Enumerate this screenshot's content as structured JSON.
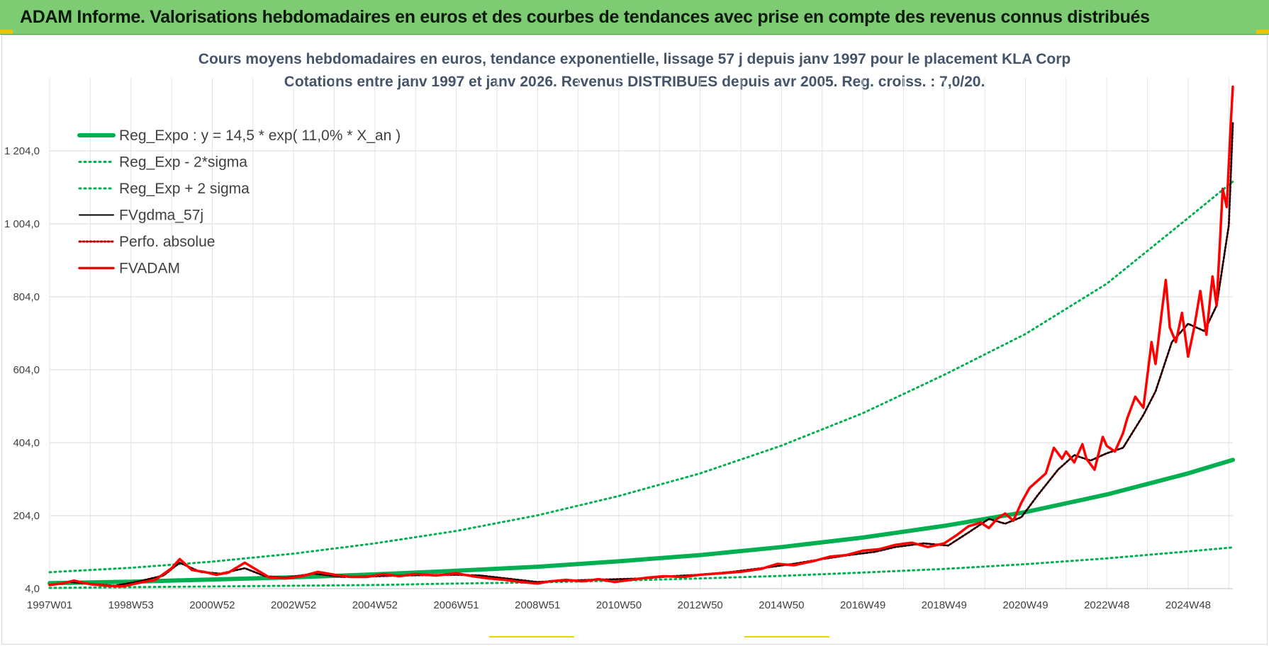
{
  "banner": {
    "title": "ADAM Informe. Valorisations hebdomadaires en euros et des courbes de tendances avec prise en compte des revenus connus distribués"
  },
  "colors": {
    "banner": "#7dcb72",
    "reg_expo": "#00b050",
    "band": "#00b050",
    "fvgdma": "#000000",
    "perfo": "#c00000",
    "fvadam": "#ff0000"
  },
  "chart_data": {
    "type": "line",
    "title": "Cours moyens hebdomadaires en euros, tendance exponentielle, lissage 57 j depuis janv 1997  pour le  placement KLA Corp",
    "subtitle": "Cotations entre janv 1997 et janv 2026. Revenus DISTRIBUES depuis avr 2005. Reg. croiss. : 7,0/20.",
    "xlabel": "",
    "ylabel": "",
    "x_range": [
      1997.0,
      2026.1
    ],
    "ylim": [
      4.0,
      1404.0
    ],
    "y_ticks": [
      "4,0",
      "204,0",
      "404,0",
      "604,0",
      "804,0",
      "1 004,0",
      "1 204,0"
    ],
    "y_tick_values": [
      4.0,
      204.0,
      404.0,
      604.0,
      804.0,
      1004.0,
      1204.0
    ],
    "x_ticks": [
      "1997W01",
      "1998W53",
      "2000W52",
      "2002W52",
      "2004W52",
      "2006W51",
      "2008W51",
      "2010W50",
      "2012W50",
      "2014W50",
      "2016W49",
      "2018W49",
      "2020W49",
      "2022W48",
      "2024W48"
    ],
    "x_tick_values": [
      1997.0,
      1999.0,
      2001.0,
      2003.0,
      2005.0,
      2007.0,
      2009.0,
      2011.0,
      2013.0,
      2015.0,
      2017.0,
      2019.0,
      2021.0,
      2023.0,
      2025.0
    ],
    "grid": true,
    "legend_position": "top-left",
    "series": [
      {
        "name": "Reg_Expo : y = 14,5 * exp( 11,0% *  X_an )",
        "style": "solid-thick",
        "color": "#00b050",
        "x": [
          1997,
          1999,
          2001,
          2003,
          2005,
          2007,
          2009,
          2011,
          2013,
          2015,
          2017,
          2019,
          2021,
          2023,
          2025,
          2026.1
        ],
        "y": [
          19,
          23,
          29,
          35,
          43,
          53,
          64,
          79,
          96,
          118,
          144,
          176,
          214,
          262,
          320,
          357
        ]
      },
      {
        "name": "Reg_Exp - 2*sigma",
        "style": "dotted",
        "color": "#00b050",
        "x": [
          1997,
          1999,
          2001,
          2003,
          2005,
          2007,
          2009,
          2011,
          2013,
          2015,
          2017,
          2019,
          2021,
          2023,
          2025,
          2026.1
        ],
        "y": [
          6,
          8,
          10,
          12,
          14,
          18,
          21,
          26,
          32,
          39,
          48,
          58,
          71,
          87,
          106,
          117
        ]
      },
      {
        "name": "Reg_Exp + 2 sigma",
        "style": "dotted",
        "color": "#00b050",
        "x": [
          1997,
          1999,
          2001,
          2003,
          2005,
          2007,
          2009,
          2011,
          2013,
          2015,
          2017,
          2019,
          2021,
          2023,
          2025,
          2026.1
        ],
        "y": [
          49,
          61,
          78,
          100,
          128,
          162,
          205,
          258,
          320,
          396,
          485,
          590,
          702,
          840,
          1020,
          1120
        ]
      },
      {
        "name": "FVgdma_57j",
        "style": "solid",
        "color": "#000000",
        "x": [
          1997.0,
          1997.5,
          1998.0,
          1998.6,
          1999.2,
          1999.8,
          2000.2,
          2000.7,
          2001.2,
          2001.8,
          2002.3,
          2002.8,
          2003.5,
          2004.2,
          2005.0,
          2005.6,
          2006.3,
          2007.0,
          2007.6,
          2008.3,
          2009.0,
          2009.5,
          2010.3,
          2011.0,
          2011.6,
          2012.3,
          2013.0,
          2013.8,
          2014.5,
          2015.3,
          2016.0,
          2016.6,
          2017.3,
          2017.8,
          2018.5,
          2019.1,
          2019.6,
          2020.1,
          2020.5,
          2020.9,
          2021.3,
          2021.8,
          2022.2,
          2022.6,
          2023.0,
          2023.4,
          2023.9,
          2024.2,
          2024.6,
          2025.0,
          2025.4,
          2025.7,
          2026.0,
          2026.1
        ],
        "y": [
          14,
          22,
          17,
          12,
          24,
          40,
          75,
          50,
          45,
          60,
          38,
          34,
          45,
          36,
          38,
          40,
          41,
          42,
          40,
          31,
          22,
          25,
          28,
          30,
          32,
          38,
          42,
          50,
          60,
          72,
          85,
          95,
          105,
          118,
          128,
          122,
          158,
          195,
          182,
          200,
          260,
          330,
          370,
          355,
          375,
          390,
          480,
          545,
          680,
          730,
          710,
          780,
          1000,
          1280
        ]
      },
      {
        "name": "Perfo. absolue",
        "style": "dotted",
        "color": "#c00000",
        "x": [
          1997.0,
          1997.5,
          1998.0,
          1998.6,
          1999.2,
          1999.8,
          2000.2,
          2000.7,
          2001.2,
          2001.8,
          2002.3,
          2002.8,
          2003.5,
          2004.2,
          2005.0,
          2005.6,
          2006.3,
          2007.0,
          2007.6,
          2008.3,
          2009.0,
          2009.5,
          2010.3,
          2011.0,
          2011.6,
          2012.3,
          2013.0,
          2013.8,
          2014.5,
          2015.3,
          2016.0,
          2016.6,
          2017.3,
          2017.8,
          2018.5,
          2019.1,
          2019.6,
          2020.1,
          2020.5,
          2020.9,
          2021.3,
          2021.8,
          2022.2,
          2022.6,
          2023.0,
          2023.4,
          2023.9,
          2024.2,
          2024.6,
          2025.0,
          2025.4,
          2025.7,
          2026.0,
          2026.1
        ],
        "y": [
          14,
          22,
          17,
          12,
          24,
          40,
          75,
          50,
          45,
          60,
          38,
          34,
          45,
          36,
          38,
          40,
          41,
          42,
          40,
          31,
          22,
          25,
          28,
          30,
          32,
          38,
          42,
          50,
          60,
          72,
          85,
          95,
          105,
          118,
          128,
          122,
          158,
          195,
          182,
          200,
          260,
          330,
          370,
          355,
          375,
          390,
          480,
          545,
          680,
          730,
          710,
          780,
          1000,
          1280
        ]
      },
      {
        "name": "FVADAM",
        "style": "solid-thick",
        "color": "#ff0000",
        "x": [
          1997.0,
          1997.3,
          1997.6,
          1998.0,
          1998.4,
          1998.8,
          1999.2,
          1999.6,
          2000.0,
          2000.2,
          2000.5,
          2000.8,
          2001.1,
          2001.4,
          2001.8,
          2002.1,
          2002.4,
          2002.8,
          2003.2,
          2003.6,
          2004.0,
          2004.4,
          2004.8,
          2005.2,
          2005.6,
          2006.0,
          2006.5,
          2007.0,
          2007.4,
          2007.8,
          2008.2,
          2008.6,
          2009.0,
          2009.3,
          2009.7,
          2010.1,
          2010.5,
          2010.9,
          2011.3,
          2011.7,
          2012.1,
          2012.6,
          2013.0,
          2013.5,
          2014.0,
          2014.5,
          2014.9,
          2015.3,
          2015.8,
          2016.2,
          2016.6,
          2017.0,
          2017.4,
          2017.8,
          2018.2,
          2018.6,
          2019.0,
          2019.3,
          2019.6,
          2019.9,
          2020.1,
          2020.3,
          2020.5,
          2020.7,
          2020.9,
          2021.1,
          2021.3,
          2021.5,
          2021.7,
          2021.9,
          2022.0,
          2022.2,
          2022.4,
          2022.5,
          2022.7,
          2022.9,
          2023.0,
          2023.2,
          2023.4,
          2023.5,
          2023.7,
          2023.9,
          2024.0,
          2024.1,
          2024.2,
          2024.35,
          2024.45,
          2024.55,
          2024.7,
          2024.85,
          2025.0,
          2025.15,
          2025.3,
          2025.45,
          2025.6,
          2025.7,
          2025.85,
          2025.95,
          2026.05,
          2026.1
        ],
        "y": [
          14,
          18,
          26,
          16,
          12,
          10,
          20,
          28,
          60,
          85,
          55,
          50,
          42,
          48,
          75,
          55,
          35,
          32,
          38,
          50,
          42,
          36,
          36,
          44,
          38,
          44,
          40,
          46,
          38,
          32,
          28,
          22,
          18,
          24,
          28,
          24,
          30,
          22,
          28,
          34,
          38,
          36,
          42,
          46,
          50,
          58,
          72,
          68,
          80,
          92,
          96,
          108,
          112,
          124,
          130,
          118,
          128,
          150,
          175,
          185,
          170,
          195,
          210,
          190,
          240,
          280,
          300,
          320,
          390,
          360,
          380,
          350,
          400,
          360,
          330,
          420,
          395,
          380,
          430,
          470,
          530,
          500,
          590,
          680,
          620,
          760,
          850,
          720,
          680,
          760,
          640,
          720,
          820,
          700,
          860,
          780,
          1100,
          1050,
          1280,
          1380
        ]
      }
    ]
  }
}
